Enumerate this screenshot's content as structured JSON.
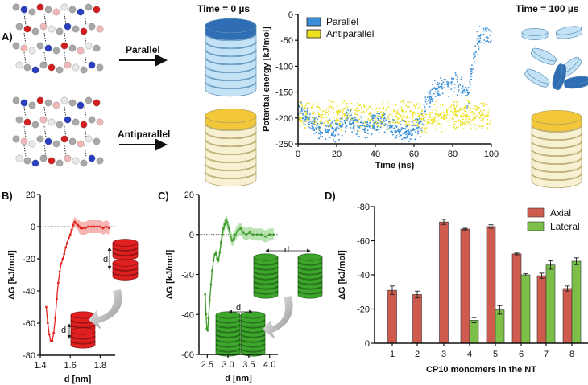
{
  "panel_labels": {
    "a": "A)",
    "b": "B)",
    "c": "C)",
    "d": "D)"
  },
  "panel_a": {
    "time_start": "Time = 0 µs",
    "time_end": "Time = 100 µs",
    "arrow_parallel": "Parallel",
    "arrow_antiparallel": "Antiparallel",
    "colors": {
      "parallel_top": "#2f6db5",
      "parallel_body": "#c4e2f6",
      "anti_top": "#f2c73a",
      "anti_body": "#f8f0d2"
    }
  },
  "illustration_labels": {
    "b_far": "d",
    "b_near": "d",
    "c_far": "d",
    "c_near": "d"
  },
  "chart_data": [
    {
      "id": "energy",
      "type": "scatter",
      "xlabel": "Time (ns)",
      "ylabel": "Potential energy [kJ/mol]",
      "xlim": [
        0,
        100
      ],
      "ylim": [
        -250,
        0
      ],
      "xticks": [
        0,
        20,
        40,
        60,
        80,
        100
      ],
      "yticks": [
        0,
        -50,
        -100,
        -150,
        -200,
        -250
      ],
      "legend": {
        "placement": "top-left",
        "entries": [
          "Parallel",
          "Antiparallel"
        ]
      },
      "series": [
        {
          "name": "Parallel",
          "color": "#3b8fd6",
          "noise": 18,
          "trend": [
            [
              0,
              -185
            ],
            [
              5,
              -200
            ],
            [
              10,
              -220
            ],
            [
              20,
              -225
            ],
            [
              25,
              -205
            ],
            [
              30,
              -210
            ],
            [
              35,
              -220
            ],
            [
              40,
              -205
            ],
            [
              45,
              -210
            ],
            [
              50,
              -220
            ],
            [
              55,
              -225
            ],
            [
              60,
              -225
            ],
            [
              64,
              -215
            ],
            [
              66,
              -180
            ],
            [
              70,
              -150
            ],
            [
              75,
              -140
            ],
            [
              80,
              -130
            ],
            [
              85,
              -145
            ],
            [
              88,
              -160
            ],
            [
              90,
              -110
            ],
            [
              92,
              -60
            ],
            [
              95,
              -40
            ],
            [
              100,
              -35
            ]
          ]
        },
        {
          "name": "Antiparallel",
          "color": "#ece01e",
          "noise": 22,
          "trend": [
            [
              0,
              -195
            ],
            [
              20,
              -195
            ],
            [
              40,
              -195
            ],
            [
              60,
              -195
            ],
            [
              66,
              -205
            ],
            [
              70,
              -200
            ],
            [
              80,
              -195
            ],
            [
              100,
              -195
            ]
          ]
        }
      ]
    },
    {
      "id": "pmf_axial",
      "type": "line",
      "xlabel": "d [nm]",
      "ylabel": "ΔG [kJ/mol]",
      "xlim": [
        1.4,
        1.9
      ],
      "ylim": [
        -80,
        20
      ],
      "xticks": [
        1.4,
        1.6,
        1.8
      ],
      "yticks": [
        20,
        0,
        -20,
        -40,
        -60,
        -80
      ],
      "color": "#e0241f",
      "band_color": "#f4a3a0",
      "x": [
        1.44,
        1.45,
        1.46,
        1.47,
        1.48,
        1.49,
        1.5,
        1.51,
        1.52,
        1.53,
        1.54,
        1.55,
        1.56,
        1.57,
        1.58,
        1.59,
        1.6,
        1.61,
        1.62,
        1.63,
        1.64,
        1.65,
        1.66,
        1.67,
        1.68,
        1.7,
        1.72,
        1.74,
        1.76,
        1.78,
        1.8,
        1.82,
        1.84,
        1.86
      ],
      "y": [
        -50,
        -60,
        -67,
        -71,
        -71,
        -66,
        -57,
        -45,
        -35,
        -28,
        -23,
        -20,
        -17,
        -13,
        -10,
        -7,
        -5,
        -2,
        1,
        3,
        2,
        1,
        0,
        -1,
        -1,
        -1,
        0,
        0,
        0,
        0,
        0,
        -1,
        0,
        -1
      ],
      "err": [
        1,
        1,
        1,
        1,
        1,
        1,
        1,
        1,
        1,
        1,
        1,
        1,
        1,
        1,
        1,
        1,
        2,
        2,
        3,
        3,
        3,
        3,
        4,
        4,
        4,
        4,
        4,
        4,
        4,
        4,
        4,
        4,
        4,
        4
      ]
    },
    {
      "id": "pmf_lateral",
      "type": "line",
      "xlabel": "d [nm]",
      "ylabel": "ΔG [kJ/mol]",
      "xlim": [
        2.3,
        4.2
      ],
      "ylim": [
        -60,
        20
      ],
      "xticks": [
        "2.5",
        "3.0",
        "3.5",
        "4.0"
      ],
      "yticks": [
        20,
        0,
        -20,
        -40,
        -60
      ],
      "color": "#3f9a2a",
      "band_color": "#a9dca0",
      "x": [
        2.45,
        2.47,
        2.49,
        2.51,
        2.53,
        2.56,
        2.59,
        2.62,
        2.65,
        2.68,
        2.71,
        2.74,
        2.77,
        2.8,
        2.83,
        2.86,
        2.89,
        2.92,
        2.95,
        2.98,
        3.02,
        3.06,
        3.1,
        3.14,
        3.18,
        3.24,
        3.3,
        3.36,
        3.44,
        3.52,
        3.6,
        3.7,
        3.8,
        3.9,
        4.0,
        4.1
      ],
      "y": [
        -30,
        -40,
        -47,
        -48,
        -42,
        -33,
        -25,
        -18,
        -13,
        -10,
        -9,
        -12,
        -13,
        -9,
        -4,
        0,
        3,
        5,
        7,
        6,
        3,
        -1,
        -3,
        -2,
        0,
        2,
        3,
        1,
        0,
        1,
        0,
        0,
        0,
        -1,
        0,
        0
      ],
      "err": [
        1,
        1,
        1,
        1,
        1,
        1,
        1,
        1,
        1,
        1,
        2,
        2,
        2,
        2,
        3,
        3,
        3,
        3,
        3,
        3,
        3,
        3,
        3,
        3,
        3,
        3,
        3,
        3,
        3,
        3,
        3,
        3,
        3,
        3,
        3,
        3
      ]
    },
    {
      "id": "binding",
      "type": "bar",
      "xlabel": "CP10 monomers in the NT",
      "ylabel": "ΔG [kJ/mol]",
      "ylim": [
        0,
        -80
      ],
      "yticks": [
        -80,
        -60,
        -40,
        -20,
        0
      ],
      "categories": [
        "1",
        "2",
        "3",
        "4",
        "5",
        "6",
        "7",
        "8"
      ],
      "legend": {
        "placement": "top-right",
        "entries": [
          "Axial",
          "Lateral"
        ]
      },
      "series": [
        {
          "name": "Axial",
          "color": "#cf5a4e",
          "values": [
            -31,
            -28.5,
            -71,
            -66.8,
            -68.3,
            -52.3,
            -39.5,
            -32
          ],
          "errors": [
            2.5,
            2,
            1.5,
            0.5,
            1,
            0.5,
            1.5,
            1.5
          ]
        },
        {
          "name": "Lateral",
          "color": "#7cc04a",
          "values": [
            null,
            null,
            null,
            -13.5,
            -19.5,
            -40,
            -45.8,
            -48
          ],
          "errors": [
            null,
            null,
            null,
            1.5,
            2.5,
            0.7,
            2.5,
            2
          ]
        }
      ]
    }
  ]
}
